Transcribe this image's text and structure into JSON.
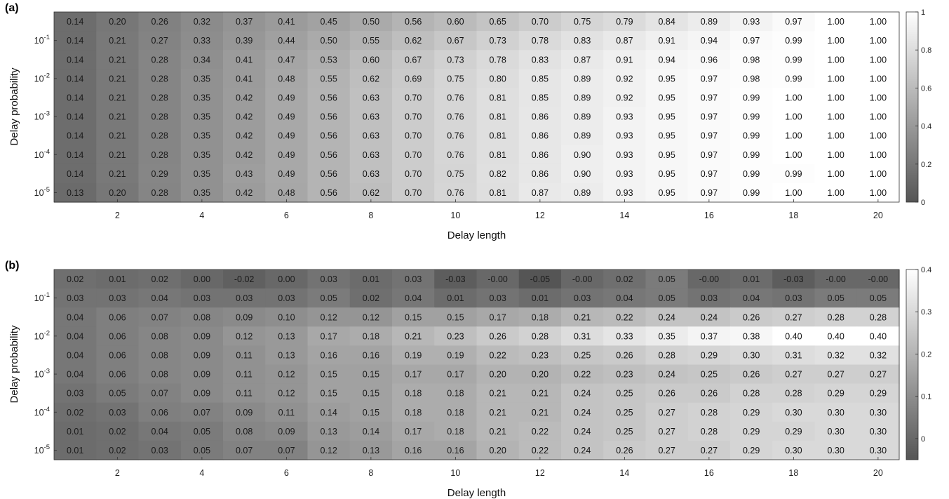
{
  "chart_data": [
    {
      "type": "heatmap",
      "panel_label": "(a)",
      "xlabel": "Delay length",
      "ylabel": "Delay probability",
      "x": [
        1,
        2,
        3,
        4,
        5,
        6,
        7,
        8,
        9,
        10,
        11,
        12,
        13,
        14,
        15,
        16,
        17,
        18,
        19,
        20
      ],
      "x_tick_labels": [
        "2",
        "4",
        "6",
        "8",
        "10",
        "12",
        "14",
        "16",
        "18",
        "20"
      ],
      "y_tick_labels": [
        {
          "base": "10",
          "exp": "-1"
        },
        {
          "base": "10",
          "exp": "-2"
        },
        {
          "base": "10",
          "exp": "-3"
        },
        {
          "base": "10",
          "exp": "-4"
        },
        {
          "base": "10",
          "exp": "-5"
        }
      ],
      "colorbar": {
        "min": 0,
        "max": 1,
        "ticks": [
          "0",
          "0.2",
          "0.4",
          "0.6",
          "0.8",
          "1"
        ]
      },
      "colormap": {
        "low": "#555555",
        "high": "#ffffff"
      },
      "values": [
        [
          "0.14",
          "0.20",
          "0.26",
          "0.32",
          "0.37",
          "0.41",
          "0.45",
          "0.50",
          "0.56",
          "0.60",
          "0.65",
          "0.70",
          "0.75",
          "0.79",
          "0.84",
          "0.89",
          "0.93",
          "0.97",
          "1.00",
          "1.00"
        ],
        [
          "0.14",
          "0.21",
          "0.27",
          "0.33",
          "0.39",
          "0.44",
          "0.50",
          "0.55",
          "0.62",
          "0.67",
          "0.73",
          "0.78",
          "0.83",
          "0.87",
          "0.91",
          "0.94",
          "0.97",
          "0.99",
          "1.00",
          "1.00"
        ],
        [
          "0.14",
          "0.21",
          "0.28",
          "0.34",
          "0.41",
          "0.47",
          "0.53",
          "0.60",
          "0.67",
          "0.73",
          "0.78",
          "0.83",
          "0.87",
          "0.91",
          "0.94",
          "0.96",
          "0.98",
          "0.99",
          "1.00",
          "1.00"
        ],
        [
          "0.14",
          "0.21",
          "0.28",
          "0.35",
          "0.41",
          "0.48",
          "0.55",
          "0.62",
          "0.69",
          "0.75",
          "0.80",
          "0.85",
          "0.89",
          "0.92",
          "0.95",
          "0.97",
          "0.98",
          "0.99",
          "1.00",
          "1.00"
        ],
        [
          "0.14",
          "0.21",
          "0.28",
          "0.35",
          "0.42",
          "0.49",
          "0.56",
          "0.63",
          "0.70",
          "0.76",
          "0.81",
          "0.85",
          "0.89",
          "0.92",
          "0.95",
          "0.97",
          "0.99",
          "1.00",
          "1.00",
          "1.00"
        ],
        [
          "0.14",
          "0.21",
          "0.28",
          "0.35",
          "0.42",
          "0.49",
          "0.56",
          "0.63",
          "0.70",
          "0.76",
          "0.81",
          "0.86",
          "0.89",
          "0.93",
          "0.95",
          "0.97",
          "0.99",
          "1.00",
          "1.00",
          "1.00"
        ],
        [
          "0.14",
          "0.21",
          "0.28",
          "0.35",
          "0.42",
          "0.49",
          "0.56",
          "0.63",
          "0.70",
          "0.76",
          "0.81",
          "0.86",
          "0.89",
          "0.93",
          "0.95",
          "0.97",
          "0.99",
          "1.00",
          "1.00",
          "1.00"
        ],
        [
          "0.14",
          "0.21",
          "0.28",
          "0.35",
          "0.42",
          "0.49",
          "0.56",
          "0.63",
          "0.70",
          "0.76",
          "0.81",
          "0.86",
          "0.90",
          "0.93",
          "0.95",
          "0.97",
          "0.99",
          "1.00",
          "1.00",
          "1.00"
        ],
        [
          "0.14",
          "0.21",
          "0.29",
          "0.35",
          "0.43",
          "0.49",
          "0.56",
          "0.63",
          "0.70",
          "0.75",
          "0.82",
          "0.86",
          "0.90",
          "0.93",
          "0.95",
          "0.97",
          "0.99",
          "0.99",
          "1.00",
          "1.00"
        ],
        [
          "0.13",
          "0.20",
          "0.28",
          "0.35",
          "0.42",
          "0.48",
          "0.56",
          "0.62",
          "0.70",
          "0.76",
          "0.81",
          "0.87",
          "0.89",
          "0.93",
          "0.95",
          "0.97",
          "0.99",
          "1.00",
          "1.00",
          "1.00"
        ]
      ]
    },
    {
      "type": "heatmap",
      "panel_label": "(b)",
      "xlabel": "Delay length",
      "ylabel": "Delay probability",
      "x": [
        1,
        2,
        3,
        4,
        5,
        6,
        7,
        8,
        9,
        10,
        11,
        12,
        13,
        14,
        15,
        16,
        17,
        18,
        19,
        20
      ],
      "x_tick_labels": [
        "2",
        "4",
        "6",
        "8",
        "10",
        "12",
        "14",
        "16",
        "18",
        "20"
      ],
      "y_tick_labels": [
        {
          "base": "10",
          "exp": "-1"
        },
        {
          "base": "10",
          "exp": "-2"
        },
        {
          "base": "10",
          "exp": "-3"
        },
        {
          "base": "10",
          "exp": "-4"
        },
        {
          "base": "10",
          "exp": "-5"
        }
      ],
      "colorbar": {
        "min": -0.05,
        "max": 0.4,
        "ticks": [
          "0",
          "0.1",
          "0.2",
          "0.3",
          "0.4"
        ]
      },
      "colormap": {
        "low": "#555555",
        "high": "#ffffff"
      },
      "values": [
        [
          "0.02",
          "0.01",
          "0.02",
          "0.00",
          "-0.02",
          "0.00",
          "0.03",
          "0.01",
          "0.03",
          "-0.03",
          "-0.00",
          "-0.05",
          "-0.00",
          "0.02",
          "0.05",
          "-0.00",
          "0.01",
          "-0.03",
          "-0.00",
          "-0.00"
        ],
        [
          "0.03",
          "0.03",
          "0.04",
          "0.03",
          "0.03",
          "0.03",
          "0.05",
          "0.02",
          "0.04",
          "0.01",
          "0.03",
          "0.01",
          "0.03",
          "0.04",
          "0.05",
          "0.03",
          "0.04",
          "0.03",
          "0.05",
          "0.05"
        ],
        [
          "0.04",
          "0.06",
          "0.07",
          "0.08",
          "0.09",
          "0.10",
          "0.12",
          "0.12",
          "0.15",
          "0.15",
          "0.17",
          "0.18",
          "0.21",
          "0.22",
          "0.24",
          "0.24",
          "0.26",
          "0.27",
          "0.28",
          "0.28"
        ],
        [
          "0.04",
          "0.06",
          "0.08",
          "0.09",
          "0.12",
          "0.13",
          "0.17",
          "0.18",
          "0.21",
          "0.23",
          "0.26",
          "0.28",
          "0.31",
          "0.33",
          "0.35",
          "0.37",
          "0.38",
          "0.40",
          "0.40",
          "0.40"
        ],
        [
          "0.04",
          "0.06",
          "0.08",
          "0.09",
          "0.11",
          "0.13",
          "0.16",
          "0.16",
          "0.19",
          "0.19",
          "0.22",
          "0.23",
          "0.25",
          "0.26",
          "0.28",
          "0.29",
          "0.30",
          "0.31",
          "0.32",
          "0.32"
        ],
        [
          "0.04",
          "0.06",
          "0.08",
          "0.09",
          "0.11",
          "0.12",
          "0.15",
          "0.15",
          "0.17",
          "0.17",
          "0.20",
          "0.20",
          "0.22",
          "0.23",
          "0.24",
          "0.25",
          "0.26",
          "0.27",
          "0.27",
          "0.27"
        ],
        [
          "0.03",
          "0.05",
          "0.07",
          "0.09",
          "0.11",
          "0.12",
          "0.15",
          "0.15",
          "0.18",
          "0.18",
          "0.21",
          "0.21",
          "0.24",
          "0.25",
          "0.26",
          "0.26",
          "0.28",
          "0.28",
          "0.29",
          "0.29"
        ],
        [
          "0.02",
          "0.03",
          "0.06",
          "0.07",
          "0.09",
          "0.11",
          "0.14",
          "0.15",
          "0.18",
          "0.18",
          "0.21",
          "0.21",
          "0.24",
          "0.25",
          "0.27",
          "0.28",
          "0.29",
          "0.30",
          "0.30",
          "0.30"
        ],
        [
          "0.01",
          "0.02",
          "0.04",
          "0.05",
          "0.08",
          "0.09",
          "0.13",
          "0.14",
          "0.17",
          "0.18",
          "0.21",
          "0.22",
          "0.24",
          "0.25",
          "0.27",
          "0.28",
          "0.29",
          "0.29",
          "0.30",
          "0.30"
        ],
        [
          "0.01",
          "0.02",
          "0.03",
          "0.05",
          "0.07",
          "0.07",
          "0.12",
          "0.13",
          "0.16",
          "0.16",
          "0.20",
          "0.22",
          "0.24",
          "0.26",
          "0.27",
          "0.27",
          "0.29",
          "0.30",
          "0.30",
          "0.30"
        ]
      ]
    }
  ]
}
